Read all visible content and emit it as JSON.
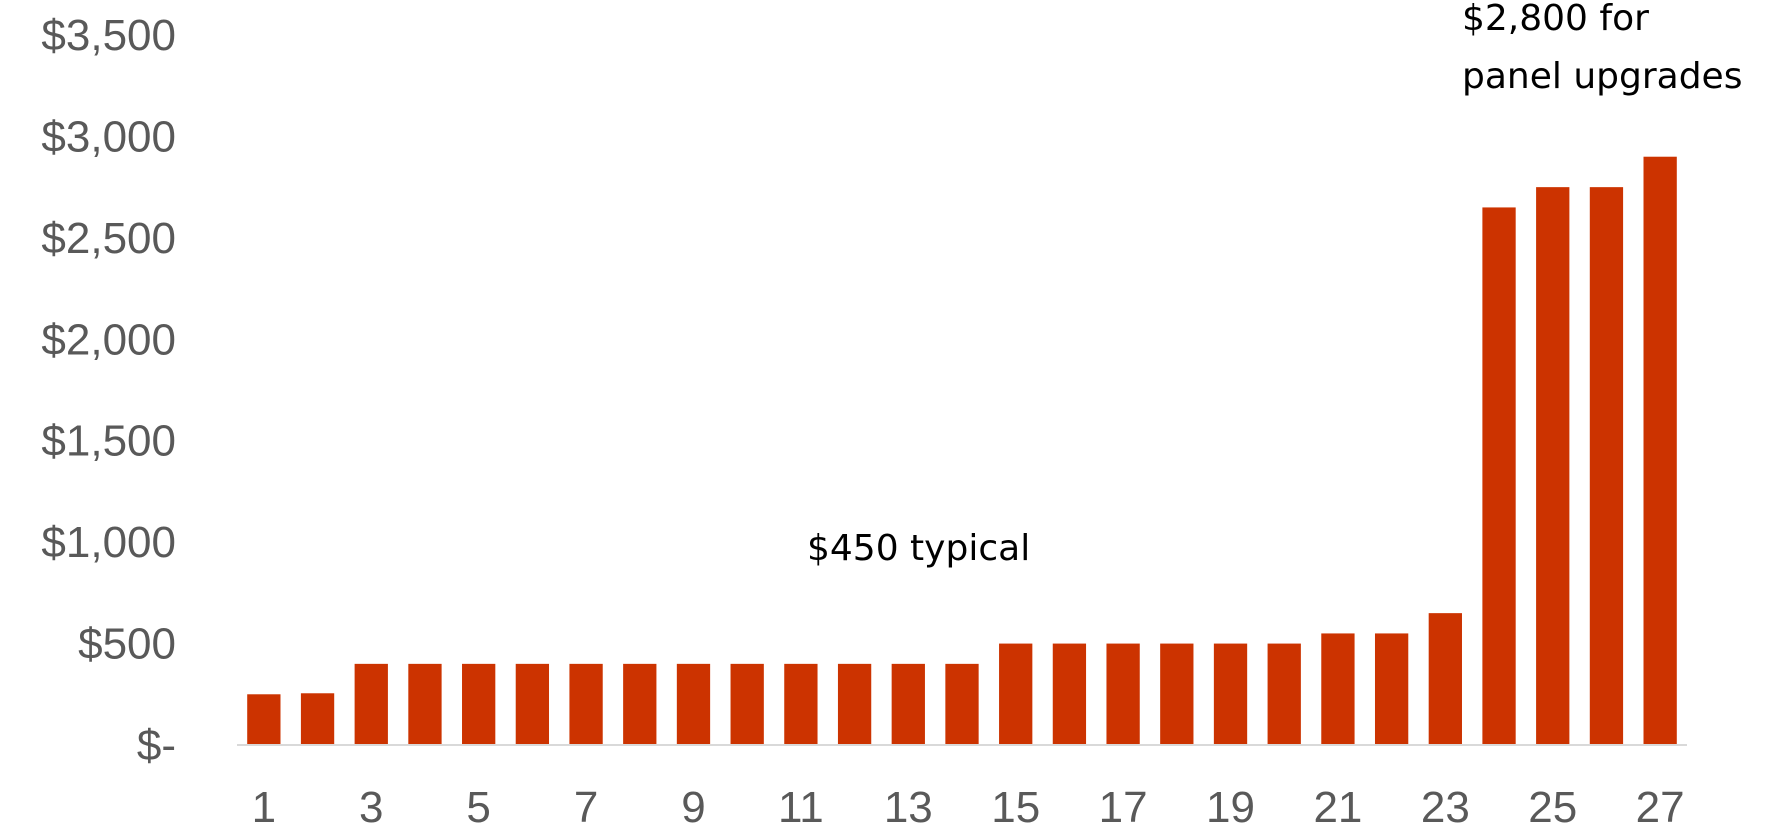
{
  "chart_data": {
    "type": "bar",
    "title": "",
    "xlabel": "",
    "ylabel": "",
    "color": "#CC3300",
    "axis_line_color": "#D9D9D9",
    "tick_color": "#595959",
    "grid": false,
    "ylim": [
      0,
      3500
    ],
    "y_ticks": [
      {
        "value": 0,
        "label": "$-"
      },
      {
        "value": 500,
        "label": "$500"
      },
      {
        "value": 1000,
        "label": "$1,000"
      },
      {
        "value": 1500,
        "label": "$1,500"
      },
      {
        "value": 2000,
        "label": "$2,000"
      },
      {
        "value": 2500,
        "label": "$2,500"
      },
      {
        "value": 3000,
        "label": "$3,000"
      },
      {
        "value": 3500,
        "label": "$3,500"
      }
    ],
    "categories": [
      "1",
      "2",
      "3",
      "4",
      "5",
      "6",
      "7",
      "8",
      "9",
      "10",
      "11",
      "12",
      "13",
      "14",
      "15",
      "16",
      "17",
      "18",
      "19",
      "20",
      "21",
      "22",
      "23",
      "24",
      "25",
      "26",
      "27"
    ],
    "x_tick_labels": [
      "1",
      "3",
      "5",
      "7",
      "9",
      "11",
      "13",
      "15",
      "17",
      "19",
      "21",
      "23",
      "25",
      "27"
    ],
    "values": [
      250,
      255,
      400,
      400,
      400,
      400,
      400,
      400,
      400,
      400,
      400,
      400,
      400,
      400,
      500,
      500,
      500,
      500,
      500,
      500,
      550,
      550,
      650,
      2650,
      2750,
      2750,
      2900
    ],
    "annotations": [
      {
        "id": "typical",
        "text": "$450 typical"
      },
      {
        "id": "panel",
        "lines": [
          "$2,800 for",
          "panel upgrades"
        ]
      }
    ]
  }
}
